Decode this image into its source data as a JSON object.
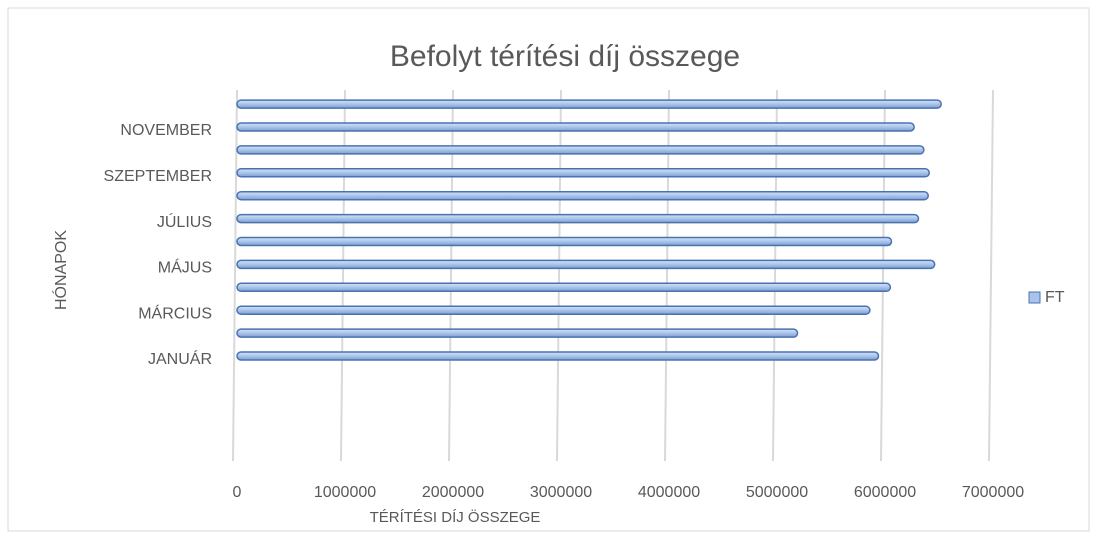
{
  "chart_data": {
    "type": "hbar",
    "title": "Befolyt térítési díj összege",
    "xlabel": "TÉRÍTÉSI DÍJ ÖSSZEGE",
    "ylabel": "HÓNAPOK",
    "categories": [
      "JANUÁR",
      null,
      "MÁRCIUS",
      null,
      "MÁJUS",
      null,
      "JÚLIUS",
      null,
      "SZEPTEMBER",
      null,
      "NOVEMBER",
      null
    ],
    "series": [
      {
        "name": "FT",
        "color": "#a9c4eb",
        "values": [
          5940000,
          5190000,
          5860000,
          6050000,
          6460000,
          6060000,
          6310000,
          6400000,
          6410000,
          6360000,
          6270000,
          6520000
        ]
      }
    ],
    "xlim": [
      0,
      7000000
    ],
    "xticks": [
      0,
      1000000,
      2000000,
      3000000,
      4000000,
      5000000,
      6000000,
      7000000
    ],
    "grid": true,
    "legend": "right"
  }
}
